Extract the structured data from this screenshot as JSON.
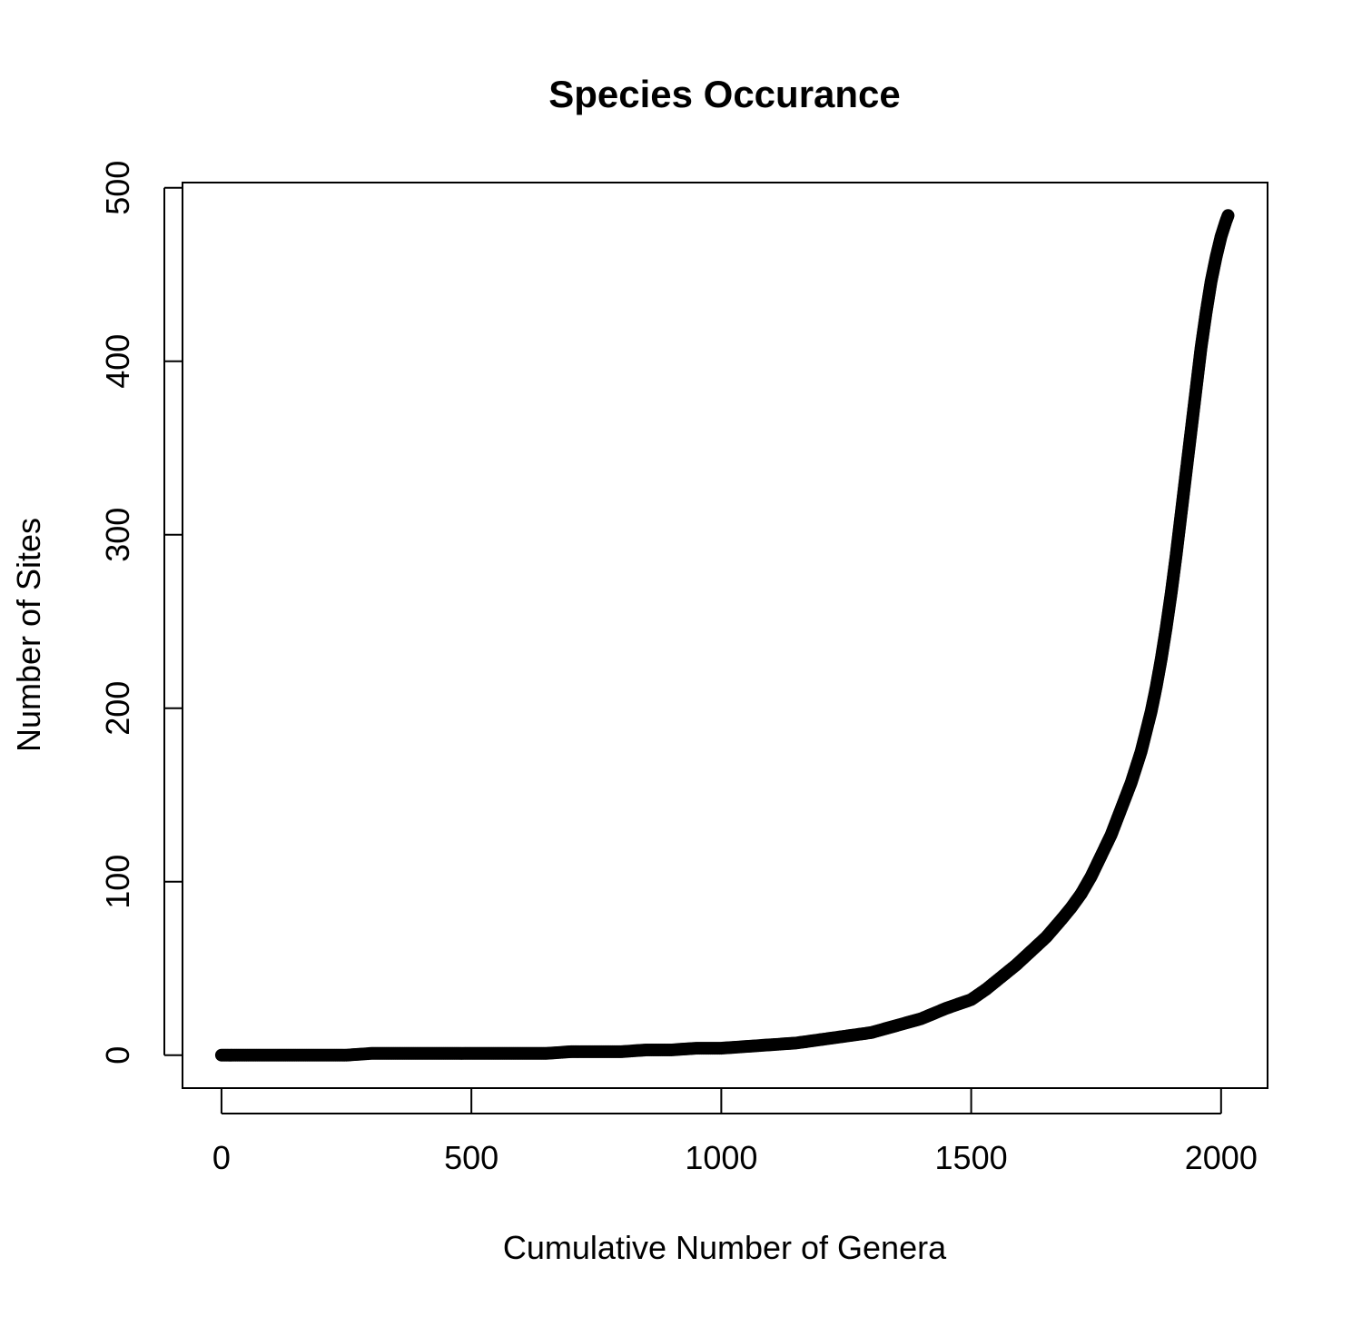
{
  "chart_data": {
    "type": "scatter",
    "title": "Species Occurance",
    "xlabel": "Cumulative Number of Genera",
    "ylabel": "Number of Sites",
    "xlim": [
      -78,
      2093
    ],
    "ylim": [
      -19,
      503
    ],
    "xticks": [
      0,
      500,
      1000,
      1500,
      2000
    ],
    "yticks": [
      0,
      100,
      200,
      300,
      400,
      500
    ],
    "xtick_labels": [
      "0",
      "500",
      "1000",
      "1500",
      "2000"
    ],
    "ytick_labels": [
      "0",
      "100",
      "200",
      "300",
      "400",
      "500"
    ],
    "grid": false,
    "legend": "none",
    "marker_color": "#000000",
    "series": [
      {
        "x": [
          0,
          50,
          100,
          150,
          200,
          250,
          300,
          350,
          400,
          450,
          500,
          550,
          600,
          650,
          700,
          750,
          800,
          850,
          900,
          950,
          1000,
          1050,
          1100,
          1150,
          1200,
          1250,
          1300,
          1350,
          1400,
          1450,
          1500,
          1530,
          1560,
          1590,
          1620,
          1650,
          1680,
          1700,
          1720,
          1740,
          1760,
          1780,
          1800,
          1820,
          1840,
          1860,
          1870,
          1880,
          1890,
          1900,
          1910,
          1920,
          1930,
          1940,
          1950,
          1960,
          1970,
          1980,
          1990,
          2000,
          2010,
          2014
        ],
        "y": [
          0,
          0,
          0,
          0,
          0,
          0,
          1,
          1,
          1,
          1,
          1,
          1,
          1,
          1,
          2,
          2,
          2,
          3,
          3,
          4,
          4,
          5,
          6,
          7,
          9,
          11,
          13,
          17,
          21,
          27,
          32,
          38,
          45,
          52,
          60,
          68,
          78,
          85,
          93,
          103,
          115,
          127,
          142,
          157,
          175,
          198,
          212,
          228,
          246,
          266,
          288,
          312,
          336,
          360,
          384,
          408,
          428,
          446,
          460,
          472,
          481,
          484
        ]
      }
    ]
  }
}
